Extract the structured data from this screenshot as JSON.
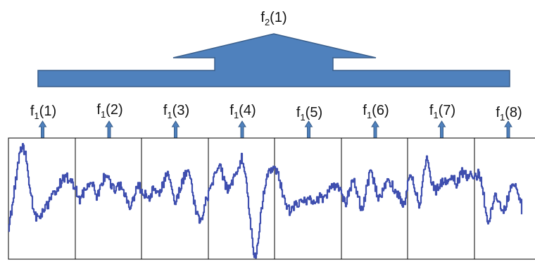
{
  "top_label": {
    "base": "f",
    "sub": "2",
    "arg": "(1)"
  },
  "segment_labels": [
    {
      "base": "f",
      "sub": "1",
      "arg": "(1)"
    },
    {
      "base": "f",
      "sub": "1",
      "arg": "(2)"
    },
    {
      "base": "f",
      "sub": "1",
      "arg": "(3)"
    },
    {
      "base": "f",
      "sub": "1",
      "arg": "(4)"
    },
    {
      "base": "f",
      "sub": "1",
      "arg": "(5)"
    },
    {
      "base": "f",
      "sub": "1",
      "arg": "(6)"
    },
    {
      "base": "f",
      "sub": "1",
      "arg": "(7)"
    },
    {
      "base": "f",
      "sub": "1",
      "arg": "(8)"
    }
  ],
  "colors": {
    "arrow_fill": "#4F81BD",
    "arrow_stroke": "#385D8A",
    "signal": "#3F4FAF",
    "frame": "#000000"
  }
}
